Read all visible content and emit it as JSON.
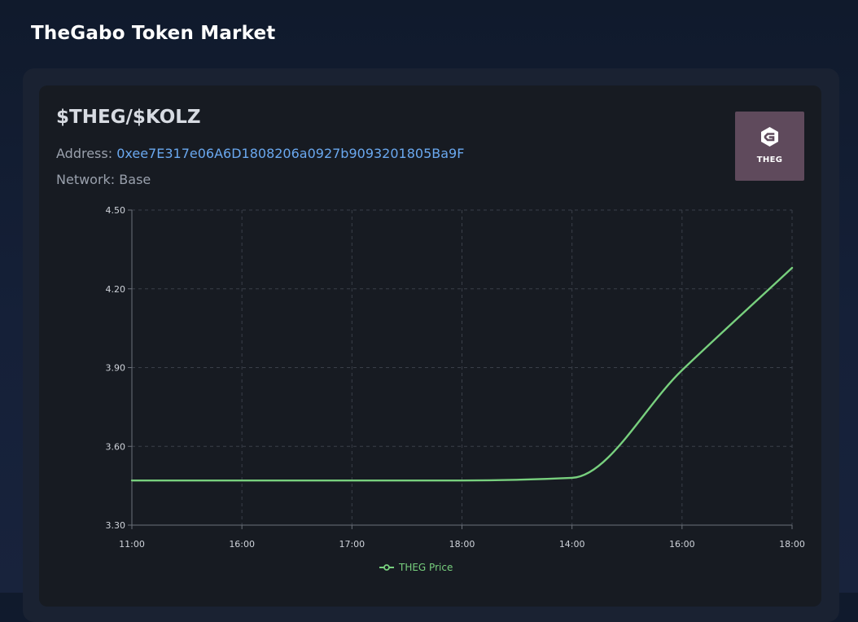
{
  "header": {
    "title": "TheGabo Token Market"
  },
  "token": {
    "pair": "$THEG/$KOLZ",
    "address_label": "Address: ",
    "address": "0xee7E317e06A6D1808206a0927b9093201805Ba9F",
    "network_label": "Network: ",
    "network": "Base",
    "logo_icon": "theg-hexagon-logo",
    "logo_text": "THEG",
    "logo_bg": "#5f4a5c",
    "address_color": "#6aa8ef"
  },
  "chart_data": {
    "type": "line",
    "x": [
      "11:00",
      "16:00",
      "17:00",
      "18:00",
      "14:00",
      "16:00",
      "18:00"
    ],
    "series": [
      {
        "name": "THEG Price",
        "values": [
          3.47,
          3.47,
          3.47,
          3.47,
          3.48,
          3.89,
          4.28
        ],
        "color": "#78d07e"
      }
    ],
    "y_ticks": [
      "3.30",
      "3.60",
      "3.90",
      "4.20",
      "4.50"
    ],
    "ylim": [
      3.3,
      4.5
    ],
    "grid": true,
    "grid_style": "dashed",
    "legend_position": "bottom-center",
    "smooth": true
  }
}
